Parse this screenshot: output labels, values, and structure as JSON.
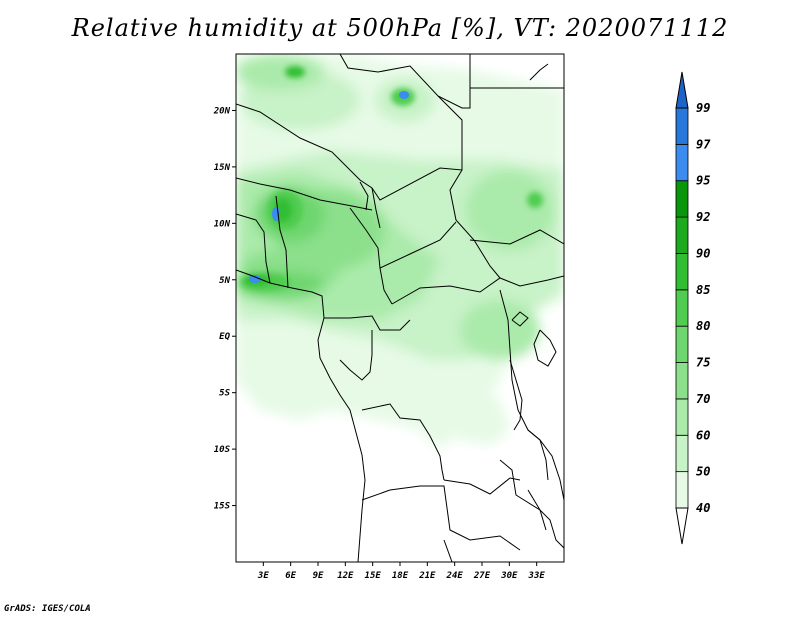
{
  "title": "Relative humidity at 500hPa [%], VT: 2020071112",
  "credit": "GrADS: IGES/COLA",
  "map": {
    "lon_range": [
      0,
      36
    ],
    "lat_range": [
      -20,
      25
    ],
    "lat_ticks": [
      {
        "value": 20,
        "label": "20N"
      },
      {
        "value": 15,
        "label": "15N"
      },
      {
        "value": 10,
        "label": "10N"
      },
      {
        "value": 5,
        "label": "5N"
      },
      {
        "value": 0,
        "label": "EQ"
      },
      {
        "value": -5,
        "label": "5S"
      },
      {
        "value": -10,
        "label": "10S"
      },
      {
        "value": -15,
        "label": "15S"
      }
    ],
    "lon_ticks": [
      {
        "value": 3,
        "label": "3E"
      },
      {
        "value": 6,
        "label": "6E"
      },
      {
        "value": 9,
        "label": "9E"
      },
      {
        "value": 12,
        "label": "12E"
      },
      {
        "value": 15,
        "label": "15E"
      },
      {
        "value": 18,
        "label": "18E"
      },
      {
        "value": 21,
        "label": "21E"
      },
      {
        "value": 24,
        "label": "24E"
      },
      {
        "value": 27,
        "label": "27E"
      },
      {
        "value": 30,
        "label": "30E"
      },
      {
        "value": 33,
        "label": "33E"
      }
    ]
  },
  "colorbar": {
    "bins": [
      {
        "from": 40,
        "to": 50,
        "color": "#e6fae6"
      },
      {
        "from": 50,
        "to": 60,
        "color": "#c8f2c8"
      },
      {
        "from": 60,
        "to": 70,
        "color": "#aaeaaa"
      },
      {
        "from": 70,
        "to": 75,
        "color": "#8ce08c"
      },
      {
        "from": 75,
        "to": 80,
        "color": "#6ed66e"
      },
      {
        "from": 80,
        "to": 85,
        "color": "#50cc50"
      },
      {
        "from": 85,
        "to": 90,
        "color": "#32be32"
      },
      {
        "from": 90,
        "to": 92,
        "color": "#1eaa1e"
      },
      {
        "from": 92,
        "to": 95,
        "color": "#0a960a"
      },
      {
        "from": 95,
        "to": 97,
        "color": "#3c8cf0"
      },
      {
        "from": 97,
        "to": 99,
        "color": "#2878dc"
      },
      {
        "from": 99,
        "to": 100,
        "color": "#1e64c8"
      }
    ],
    "labels": [
      "40",
      "50",
      "60",
      "70",
      "75",
      "80",
      "85",
      "90",
      "92",
      "95",
      "97",
      "99"
    ]
  }
}
